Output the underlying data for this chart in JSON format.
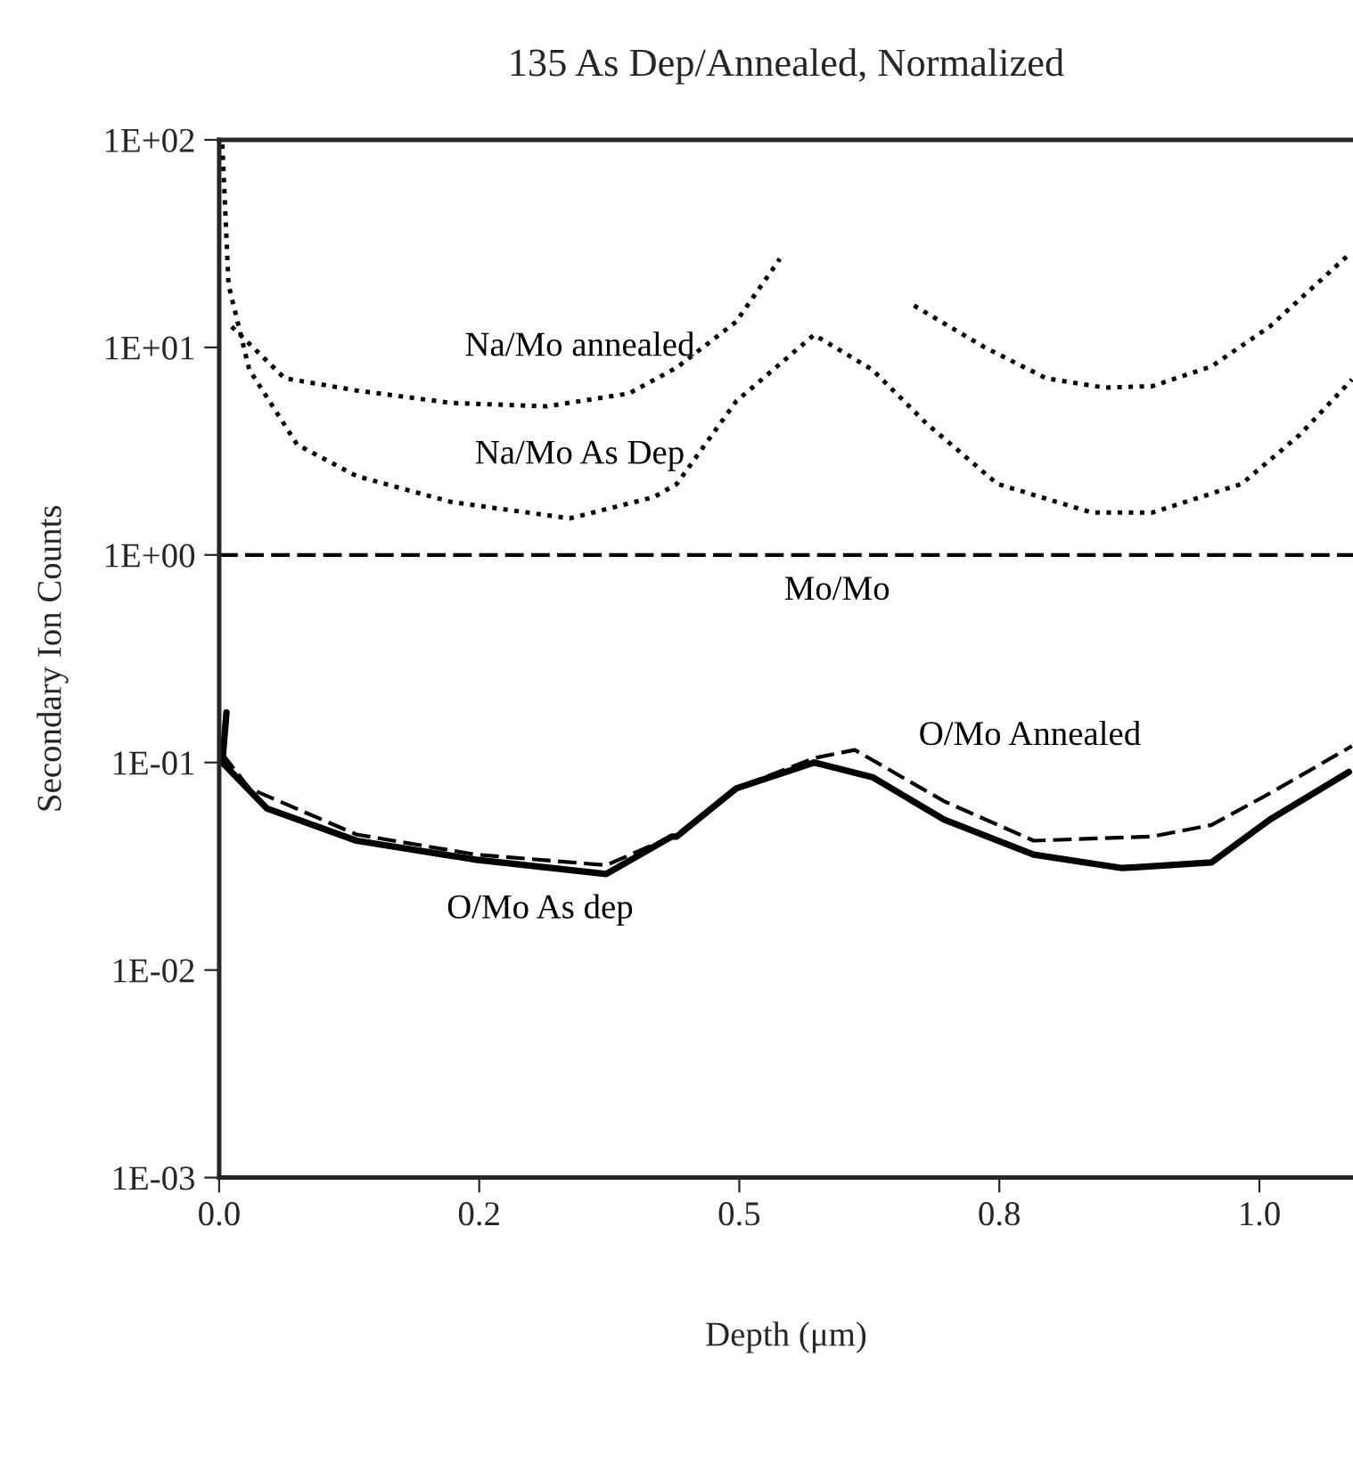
{
  "chart_data": {
    "type": "line",
    "title": "135 As Dep/Annealed, Normalized",
    "xlabel": "Depth (μm)",
    "ylabel": "Secondary Ion Counts",
    "log": "y",
    "grid": false,
    "legend": false,
    "marker": "none",
    "xlim": [
      0,
      1.09
    ],
    "xticks": [
      {
        "value": 0,
        "label": "0.0"
      },
      {
        "value": 0.25,
        "label": "0.2"
      },
      {
        "value": 0.5,
        "label": "0.5"
      },
      {
        "value": 0.75,
        "label": "0.8"
      },
      {
        "value": 1.0,
        "label": "1.0"
      }
    ],
    "ylim": [
      0.001,
      100
    ],
    "yticks": [
      {
        "value": 0.001,
        "label": "1E-03"
      },
      {
        "value": 0.01,
        "label": "1E-02"
      },
      {
        "value": 0.1,
        "label": "1E-01"
      },
      {
        "value": 1,
        "label": "1E+00"
      },
      {
        "value": 10,
        "label": "1E+01"
      },
      {
        "value": 100,
        "label": "1E+02"
      }
    ],
    "series": [
      {
        "name": "Na/Mo annealed",
        "color": "#000000",
        "line_style": "dotted",
        "x": [
          0.012,
          0.063,
          0.132,
          0.223,
          0.315,
          0.394,
          0.44,
          0.497,
          0.539,
          0.6,
          0.668,
          0.736,
          0.795,
          0.851,
          0.897,
          0.954,
          1.01,
          1.086
        ],
        "values": [
          12.6,
          7.1,
          6.2,
          5.4,
          5.2,
          6.0,
          8,
          13.3,
          26.7,
          null,
          15.9,
          10,
          7.1,
          6.4,
          6.5,
          8.1,
          12.6,
          28
        ]
      },
      {
        "name": "Na/Mo As Dep",
        "color": "#000000",
        "line_style": "dotted",
        "x": [
          0.003,
          0.009,
          0.029,
          0.075,
          0.132,
          0.223,
          0.337,
          0.418,
          0.44,
          0.497,
          0.572,
          0.628,
          0.68,
          0.748,
          0.839,
          0.897,
          0.983,
          1.039,
          1.089
        ],
        "values": [
          95,
          20,
          7.8,
          3.4,
          2.4,
          1.8,
          1.5,
          1.9,
          2.2,
          5.5,
          11.5,
          7.8,
          4.3,
          2.2,
          1.6,
          1.6,
          2.2,
          3.8,
          7.0
        ]
      },
      {
        "name": "Mo/Mo",
        "color": "#000000",
        "line_style": "dashed",
        "x": [
          0,
          1.09
        ],
        "values": [
          1,
          1
        ]
      },
      {
        "name": "O/Mo Annealed",
        "color": "#000000",
        "line_style": "dashed",
        "x": [
          0.003,
          0.029,
          0.132,
          0.247,
          0.372,
          0.44,
          0.497,
          0.572,
          0.611,
          0.697,
          0.783,
          0.897,
          0.954,
          1.01,
          1.089
        ],
        "values": [
          0.11,
          0.075,
          0.045,
          0.036,
          0.032,
          0.045,
          0.075,
          0.105,
          0.115,
          0.065,
          0.042,
          0.044,
          0.05,
          0.071,
          0.12
        ]
      },
      {
        "name": "O/Mo As dep",
        "color": "#000000",
        "line_style": "solid",
        "x": [
          0.007,
          0.003,
          0.046,
          0.132,
          0.247,
          0.372,
          0.435,
          0.44,
          0.497,
          0.572,
          0.628,
          0.697,
          0.783,
          0.868,
          0.954,
          1.01,
          1.086
        ],
        "values": [
          0.174,
          0.1,
          0.06,
          0.042,
          0.034,
          0.029,
          0.044,
          0.044,
          0.075,
          0.1,
          0.085,
          0.053,
          0.036,
          0.031,
          0.033,
          0.053,
          0.09
        ]
      }
    ]
  }
}
